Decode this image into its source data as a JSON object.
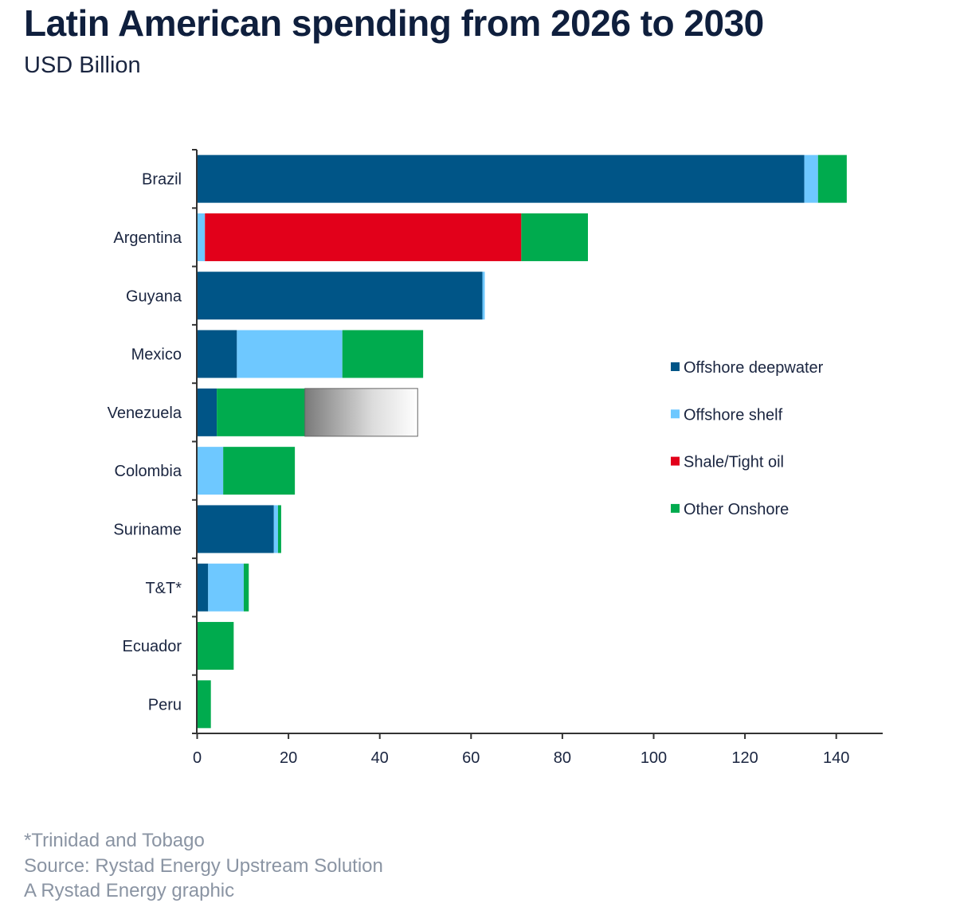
{
  "chart_data": {
    "type": "bar",
    "orientation": "horizontal",
    "stacked": true,
    "title": "Latin American spending from 2026 to 2030",
    "subtitle": "USD Billion",
    "categories": [
      "Brazil",
      "Argentina",
      "Guyana",
      "Mexico",
      "Venezuela",
      "Colombia",
      "Suriname",
      "T&T*",
      "Ecuador",
      "Peru"
    ],
    "series": [
      {
        "name": "Offshore deepwater",
        "color": "#005587",
        "values": [
          133,
          0,
          62.5,
          8.7,
          4.3,
          0,
          16.8,
          2.4,
          0,
          0
        ]
      },
      {
        "name": "Offshore shelf",
        "color": "#6ec8ff",
        "values": [
          3,
          1.7,
          0.5,
          23.1,
          0,
          5.7,
          0.9,
          7.8,
          0,
          0
        ]
      },
      {
        "name": "Shale/Tight oil",
        "color": "#e2001a",
        "values": [
          0,
          69.3,
          0,
          0,
          0,
          0,
          0,
          0,
          0,
          0
        ]
      },
      {
        "name": "Other Onshore",
        "color": "#00ab4e",
        "values": [
          6.3,
          14.6,
          0,
          17.7,
          19.3,
          15.7,
          0.7,
          1.1,
          8,
          3
        ]
      },
      {
        "name": "",
        "color": "gradient-grey",
        "values": [
          0,
          0,
          0,
          0,
          24.7,
          0,
          0,
          0,
          0,
          0
        ]
      }
    ],
    "xlim": [
      0,
      150
    ],
    "xticks": [
      "0",
      "20",
      "40",
      "60",
      "80",
      "100",
      "120",
      "140"
    ],
    "grid": false,
    "legend_placement": "right"
  },
  "footnotes": [
    "*Trinidad and Tobago",
    "Source: Rystad Energy Upstream Solution",
    "A Rystad Energy graphic"
  ]
}
